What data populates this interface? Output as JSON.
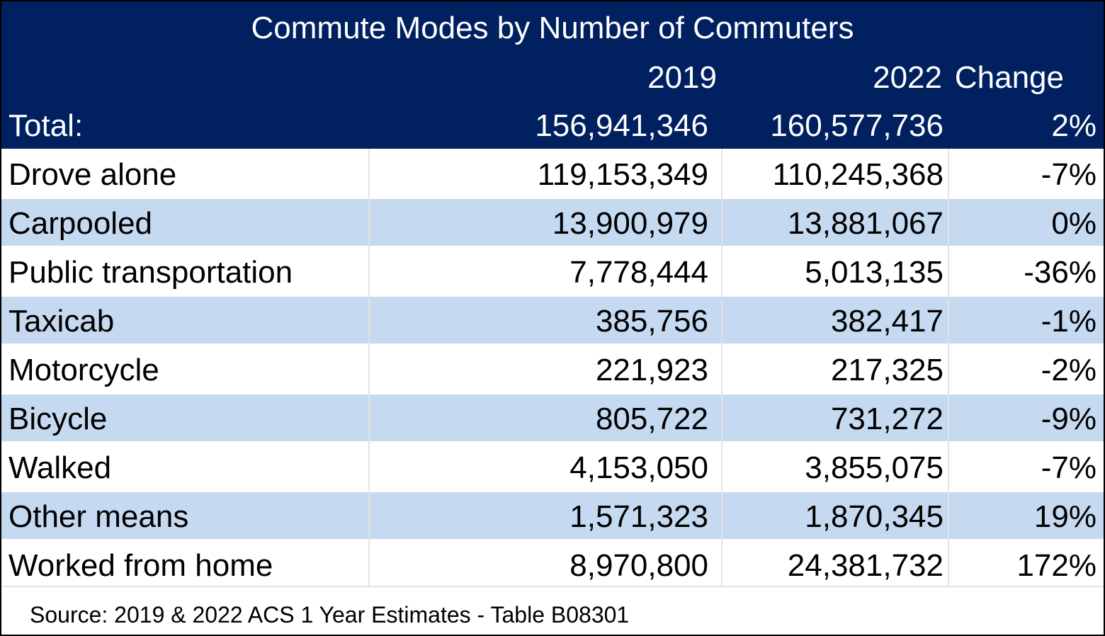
{
  "chart_data": {
    "type": "table",
    "title": "Commute Modes by Number of Commuters",
    "columns": [
      "",
      "2019",
      "2022",
      "Change"
    ],
    "total": {
      "label": "Total:",
      "v2019": "156,941,346",
      "v2022": "160,577,736",
      "change": "2%"
    },
    "rows": [
      {
        "label": "Drove alone",
        "v2019": "119,153,349",
        "v2022": "110,245,368",
        "change": "-7%"
      },
      {
        "label": "Carpooled",
        "v2019": "13,900,979",
        "v2022": "13,881,067",
        "change": "0%"
      },
      {
        "label": "Public transportation",
        "v2019": "7,778,444",
        "v2022": "5,013,135",
        "change": "-36%"
      },
      {
        "label": "Taxicab",
        "v2019": "385,756",
        "v2022": "382,417",
        "change": "-1%"
      },
      {
        "label": "Motorcycle",
        "v2019": "221,923",
        "v2022": "217,325",
        "change": "-2%"
      },
      {
        "label": "Bicycle",
        "v2019": "805,722",
        "v2022": "731,272",
        "change": "-9%"
      },
      {
        "label": "Walked",
        "v2019": "4,153,050",
        "v2022": "3,855,075",
        "change": "-7%"
      },
      {
        "label": "Other means",
        "v2019": "1,571,323",
        "v2022": "1,870,345",
        "change": "19%"
      },
      {
        "label": "Worked from home",
        "v2019": "8,970,800",
        "v2022": "24,381,732",
        "change": "172%"
      }
    ],
    "source": "Source: 2019 & 2022 ACS 1 Year Estimates - Table B08301"
  },
  "colors": {
    "header_bg": "#002060",
    "header_text": "#ffffff",
    "band_alt": "#c5d9f1",
    "band_plain": "#ffffff"
  }
}
